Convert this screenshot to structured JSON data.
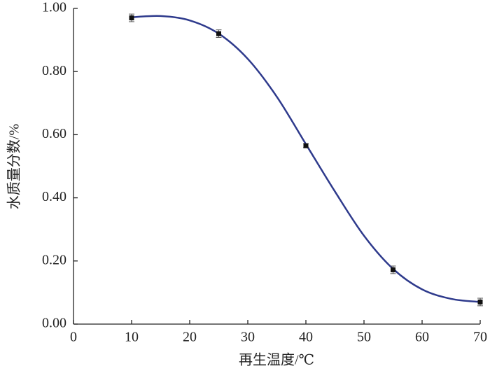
{
  "chart_data": {
    "type": "scatter",
    "x_label": "再生温度/℃",
    "y_label": "水质量分数/%",
    "xlim": [
      0,
      70
    ],
    "xticks": [
      0,
      10,
      20,
      30,
      40,
      50,
      60,
      70
    ],
    "ylim": [
      0,
      1
    ],
    "yticks": [
      {
        "value": 0,
        "label": "0.00"
      },
      {
        "value": 0.2,
        "label": "0.20"
      },
      {
        "value": 0.4,
        "label": "0.40"
      },
      {
        "value": 0.6,
        "label": "0.60"
      },
      {
        "value": 0.8,
        "label": "0.80"
      },
      {
        "value": 1,
        "label": "1.00"
      }
    ],
    "series": [
      {
        "color": "#111111",
        "x": [
          10,
          25,
          40,
          55,
          70
        ],
        "values": [
          0.97,
          0.92,
          0.565,
          0.172,
          0.07
        ],
        "errors": [
          0.012,
          0.012,
          0.006,
          0.012,
          0.012
        ]
      }
    ],
    "fit": {
      "type": "line",
      "color": "#2e3a8c",
      "x": [
        10,
        15,
        20,
        25,
        30,
        35,
        40,
        45,
        50,
        55,
        60,
        65,
        70
      ],
      "values": [
        0.972,
        0.976,
        0.962,
        0.92,
        0.84,
        0.72,
        0.57,
        0.42,
        0.28,
        0.175,
        0.11,
        0.08,
        0.07
      ]
    }
  }
}
